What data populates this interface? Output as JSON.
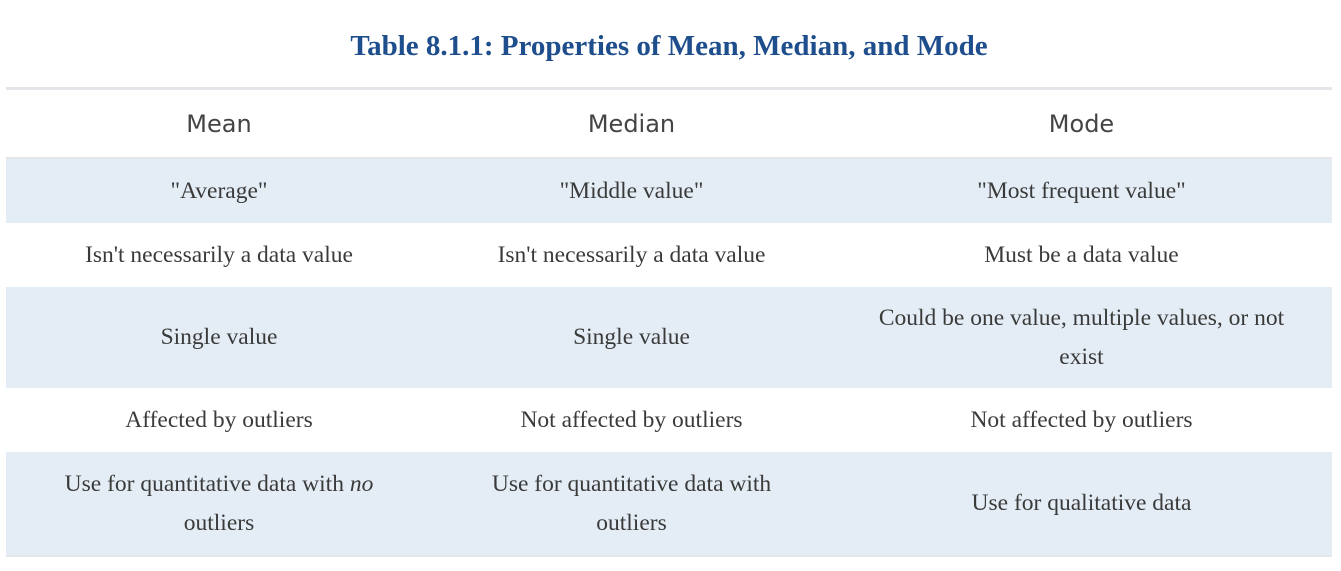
{
  "caption": "Table 8.1.1: Properties of Mean, Median, and Mode",
  "headers": [
    "Mean",
    "Median",
    "Mode"
  ],
  "rows": [
    [
      "\"Average\"",
      "\"Middle value\"",
      "\"Most frequent value\""
    ],
    [
      "Isn't necessarily a data value",
      "Isn't necessarily a data value",
      "Must be a data value"
    ],
    [
      "Single value",
      "Single value",
      "Could be one value, multiple values, or not exist"
    ],
    [
      "Affected by outliers",
      "Not affected by outliers",
      "Not affected by outliers"
    ],
    [
      {
        "before": "Use for quantitative data with ",
        "emphasis": "no",
        "after": " outliers"
      },
      "Use for quantitative data with outliers",
      "Use for qualitative data"
    ]
  ],
  "colors": {
    "caption": "#1f4e8c",
    "stripe": "#e4edf5",
    "border": "#e4e6ea"
  }
}
